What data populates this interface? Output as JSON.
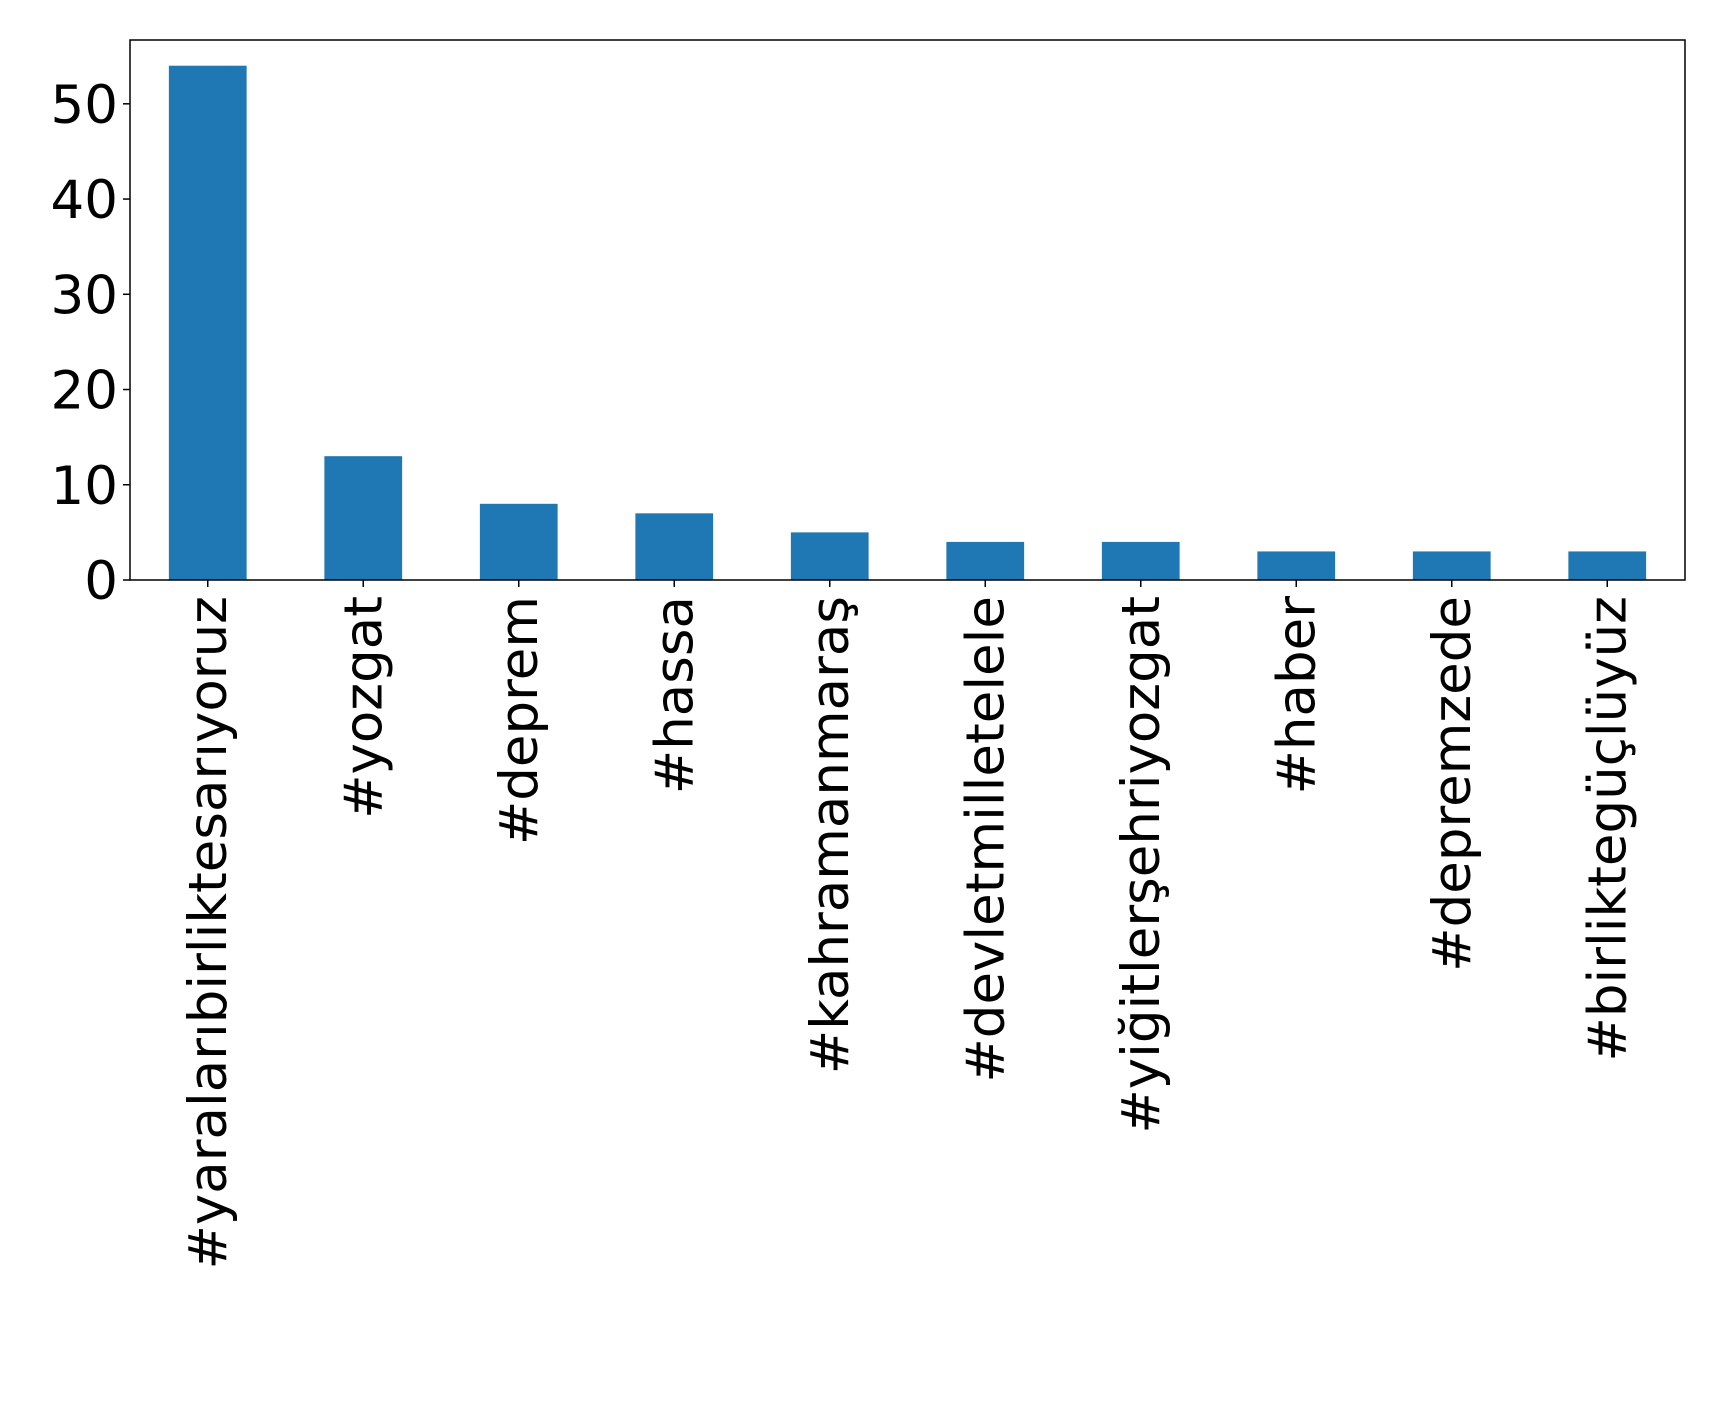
{
  "chart_data": {
    "type": "bar",
    "title": "",
    "xlabel": "",
    "ylabel": "",
    "categories": [
      "#yaralarıbirliktesarıyoruz",
      "#yozgat",
      "#deprem",
      "#hassa",
      "#kahramanmaraş",
      "#devletmilletelele",
      "#yiğitlerşehriyozgat",
      "#haber",
      "#depremzede",
      "#birliktegüçlüyüz"
    ],
    "values": [
      54,
      13,
      8,
      7,
      5,
      4,
      4,
      3,
      3,
      3
    ],
    "ylim": [
      0,
      56.7
    ],
    "yticks": [
      0,
      10,
      20,
      30,
      40,
      50
    ],
    "grid": false,
    "legend": "none",
    "bar_color": "#1f77b4"
  }
}
